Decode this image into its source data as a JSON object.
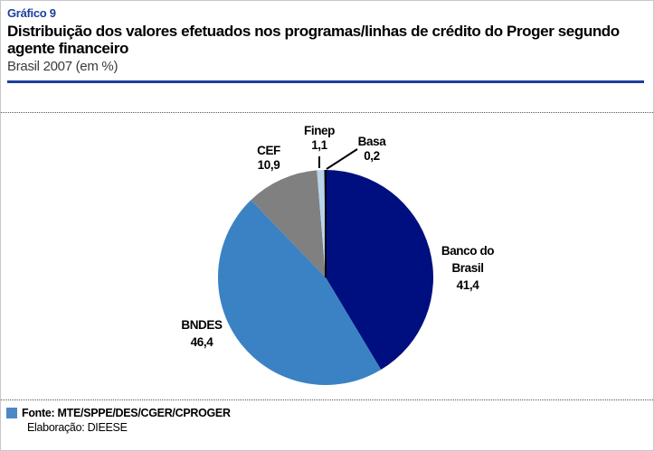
{
  "header": {
    "kicker": "Gráfico 9",
    "title": "Distribuição dos valores efetuados nos programas/linhas de crédito do Proger segundo agente financeiro",
    "subtitle": "Brasil 2007 (em %)",
    "kicker_color": "#1c3f9e",
    "rule_color": "#1c3f9e"
  },
  "chart_data": {
    "type": "pie",
    "title": "Distribuição dos valores efetuados nos programas/linhas de crédito do Proger segundo agente financeiro",
    "subtitle": "Brasil 2007 (em %)",
    "unit": "%",
    "start_angle_deg": 0,
    "direction": "clockwise",
    "legend_position": "none",
    "data_labels": "outside",
    "categories": [
      "Banco do Brasil",
      "BNDES",
      "CEF",
      "Finep",
      "Basa"
    ],
    "values": [
      41.4,
      46.4,
      10.9,
      1.1,
      0.2
    ],
    "value_labels": [
      "41,4",
      "46,4",
      "10,9",
      "1,1",
      "0,2"
    ],
    "colors": [
      "#000f80",
      "#3b82c4",
      "#808080",
      "#b8d4ea",
      "#000000"
    ]
  },
  "labels": {
    "banco": {
      "line1": "Banco do",
      "line2": "Brasil",
      "value": "41,4"
    },
    "bndes": {
      "name": "BNDES",
      "value": "46,4"
    },
    "cef": {
      "name": "CEF",
      "value": "10,9"
    },
    "finep": {
      "name": "Finep",
      "value": "1,1"
    },
    "basa": {
      "name": "Basa",
      "value": "0,2"
    }
  },
  "footer": {
    "fonte": "Fonte: MTE/SPPE/DES/CGER/CPROGER",
    "elaboracao": "Elaboração: DIEESE",
    "legend_color": "#4e88c4"
  }
}
